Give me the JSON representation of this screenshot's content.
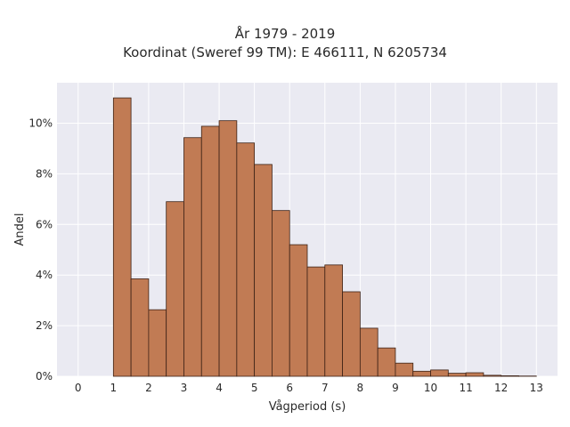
{
  "chart_data": {
    "type": "bar",
    "title": [
      "År 1979 - 2019",
      "Koordinat (Sweref 99 TM): E 466111, N 6205734"
    ],
    "xlabel": "Vågperiod (s)",
    "ylabel": "Andel",
    "bin_width": 0.5,
    "bins": [
      {
        "x0": 1.0,
        "value": 11.0
      },
      {
        "x0": 1.5,
        "value": 3.85
      },
      {
        "x0": 2.0,
        "value": 2.63
      },
      {
        "x0": 2.5,
        "value": 6.9
      },
      {
        "x0": 3.0,
        "value": 9.43
      },
      {
        "x0": 3.5,
        "value": 9.88
      },
      {
        "x0": 4.0,
        "value": 10.1
      },
      {
        "x0": 4.5,
        "value": 9.22
      },
      {
        "x0": 5.0,
        "value": 8.37
      },
      {
        "x0": 5.5,
        "value": 6.55
      },
      {
        "x0": 6.0,
        "value": 5.2
      },
      {
        "x0": 6.5,
        "value": 4.32
      },
      {
        "x0": 7.0,
        "value": 4.4
      },
      {
        "x0": 7.5,
        "value": 3.34
      },
      {
        "x0": 8.0,
        "value": 1.9
      },
      {
        "x0": 8.5,
        "value": 1.12
      },
      {
        "x0": 9.0,
        "value": 0.52
      },
      {
        "x0": 9.5,
        "value": 0.2
      },
      {
        "x0": 10.0,
        "value": 0.25
      },
      {
        "x0": 10.5,
        "value": 0.12
      },
      {
        "x0": 11.0,
        "value": 0.14
      },
      {
        "x0": 11.5,
        "value": 0.04
      },
      {
        "x0": 12.0,
        "value": 0.02
      },
      {
        "x0": 12.5,
        "value": 0.01
      }
    ],
    "xlim": [
      -0.6,
      13.6
    ],
    "ylim": [
      0,
      11.6
    ],
    "xticks": [
      0,
      1,
      2,
      3,
      4,
      5,
      6,
      7,
      8,
      9,
      10,
      11,
      12,
      13
    ],
    "yticks": [
      0,
      2,
      4,
      6,
      8,
      10
    ],
    "ytick_labels": [
      "0%",
      "2%",
      "4%",
      "6%",
      "8%",
      "10%"
    ],
    "grid": true,
    "colors": {
      "bar_fill": "#c17b54",
      "bar_edge": "#3d2216",
      "plot_background": "#eaeaf2",
      "grid": "#ffffff",
      "text": "#2a2a2a"
    }
  }
}
